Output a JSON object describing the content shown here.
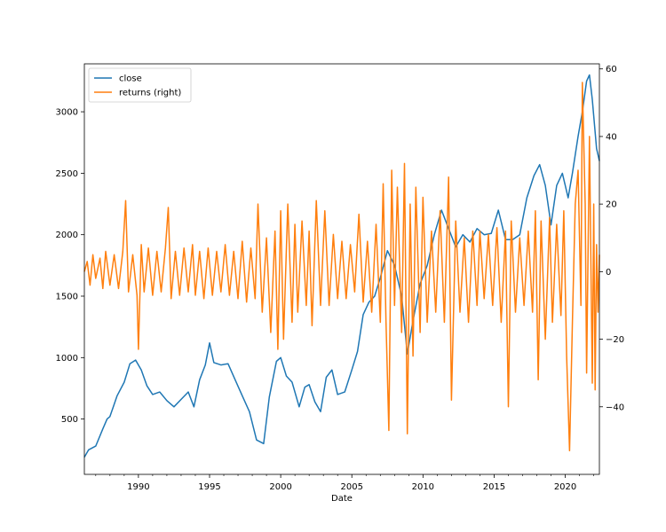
{
  "chart_data": {
    "type": "line",
    "xlabel": "Date",
    "x_range": [
      1986.2,
      2022.4
    ],
    "x_tick_labels": [
      "1990",
      "1995",
      "2000",
      "2005",
      "2010",
      "2015",
      "2020"
    ],
    "left_axis": {
      "ylim": [
        50,
        3390
      ],
      "tick_labels": [
        "500",
        "1000",
        "1500",
        "2000",
        "2500",
        "3000"
      ]
    },
    "right_axis": {
      "ylim": [
        -60,
        61.5
      ],
      "tick_labels": [
        "−40",
        "−20",
        "0",
        "20",
        "40",
        "60"
      ]
    },
    "legend": {
      "placement": "upper-left",
      "entries": [
        "close",
        "returns (right)"
      ]
    },
    "grid": false,
    "series": [
      {
        "name": "close",
        "axis": "left",
        "color": "#1f77b4",
        "points": [
          [
            1986.2,
            190
          ],
          [
            1986.5,
            250
          ],
          [
            1987.0,
            280
          ],
          [
            1987.5,
            420
          ],
          [
            1987.8,
            500
          ],
          [
            1988.0,
            520
          ],
          [
            1988.5,
            690
          ],
          [
            1989.0,
            800
          ],
          [
            1989.4,
            950
          ],
          [
            1989.8,
            980
          ],
          [
            1990.2,
            900
          ],
          [
            1990.6,
            770
          ],
          [
            1991.0,
            700
          ],
          [
            1991.5,
            720
          ],
          [
            1992.0,
            650
          ],
          [
            1992.5,
            600
          ],
          [
            1993.0,
            660
          ],
          [
            1993.5,
            720
          ],
          [
            1993.9,
            600
          ],
          [
            1994.3,
            820
          ],
          [
            1994.7,
            940
          ],
          [
            1995.0,
            1120
          ],
          [
            1995.3,
            960
          ],
          [
            1995.8,
            940
          ],
          [
            1996.3,
            950
          ],
          [
            1996.8,
            820
          ],
          [
            1997.3,
            690
          ],
          [
            1997.8,
            560
          ],
          [
            1998.3,
            330
          ],
          [
            1998.8,
            300
          ],
          [
            1999.2,
            680
          ],
          [
            1999.7,
            970
          ],
          [
            2000.0,
            1000
          ],
          [
            2000.4,
            850
          ],
          [
            2000.8,
            800
          ],
          [
            2001.3,
            600
          ],
          [
            2001.7,
            760
          ],
          [
            2002.0,
            780
          ],
          [
            2002.4,
            640
          ],
          [
            2002.8,
            560
          ],
          [
            2003.2,
            840
          ],
          [
            2003.6,
            900
          ],
          [
            2004.0,
            700
          ],
          [
            2004.5,
            720
          ],
          [
            2005.0,
            900
          ],
          [
            2005.4,
            1050
          ],
          [
            2005.8,
            1350
          ],
          [
            2006.2,
            1450
          ],
          [
            2006.6,
            1500
          ],
          [
            2007.0,
            1650
          ],
          [
            2007.5,
            1870
          ],
          [
            2008.0,
            1750
          ],
          [
            2008.5,
            1500
          ],
          [
            2008.9,
            1030
          ],
          [
            2009.3,
            1300
          ],
          [
            2009.8,
            1600
          ],
          [
            2010.3,
            1750
          ],
          [
            2010.8,
            2000
          ],
          [
            2011.3,
            2200
          ],
          [
            2011.8,
            2050
          ],
          [
            2012.3,
            1900
          ],
          [
            2012.8,
            2000
          ],
          [
            2013.3,
            1940
          ],
          [
            2013.8,
            2050
          ],
          [
            2014.3,
            2000
          ],
          [
            2014.8,
            2010
          ],
          [
            2015.3,
            2200
          ],
          [
            2015.8,
            1960
          ],
          [
            2016.3,
            1960
          ],
          [
            2016.8,
            2000
          ],
          [
            2017.3,
            2300
          ],
          [
            2017.8,
            2480
          ],
          [
            2018.2,
            2570
          ],
          [
            2018.6,
            2400
          ],
          [
            2019.0,
            2080
          ],
          [
            2019.4,
            2400
          ],
          [
            2019.8,
            2500
          ],
          [
            2020.2,
            2300
          ],
          [
            2020.5,
            2500
          ],
          [
            2020.9,
            2800
          ],
          [
            2021.2,
            3000
          ],
          [
            2021.5,
            3250
          ],
          [
            2021.7,
            3300
          ],
          [
            2021.9,
            3100
          ],
          [
            2022.2,
            2700
          ],
          [
            2022.4,
            2600
          ]
        ]
      },
      {
        "name": "returns (right)",
        "axis": "right",
        "color": "#ff7f0e",
        "points": [
          [
            1986.2,
            0
          ],
          [
            1986.4,
            3
          ],
          [
            1986.6,
            -4
          ],
          [
            1986.8,
            5
          ],
          [
            1987.0,
            -2
          ],
          [
            1987.3,
            4
          ],
          [
            1987.5,
            -5
          ],
          [
            1987.7,
            6
          ],
          [
            1988.0,
            -4
          ],
          [
            1988.3,
            5
          ],
          [
            1988.6,
            -5
          ],
          [
            1988.9,
            6
          ],
          [
            1989.1,
            21
          ],
          [
            1989.3,
            -6
          ],
          [
            1989.6,
            5
          ],
          [
            1989.9,
            -7
          ],
          [
            1990.0,
            -23
          ],
          [
            1990.2,
            8
          ],
          [
            1990.4,
            -6
          ],
          [
            1990.7,
            7
          ],
          [
            1991.0,
            -7
          ],
          [
            1991.3,
            6
          ],
          [
            1991.6,
            -6
          ],
          [
            1991.9,
            7
          ],
          [
            1992.1,
            19
          ],
          [
            1992.3,
            -8
          ],
          [
            1992.6,
            6
          ],
          [
            1992.9,
            -7
          ],
          [
            1993.2,
            7
          ],
          [
            1993.5,
            -6
          ],
          [
            1993.8,
            8
          ],
          [
            1994.0,
            -7
          ],
          [
            1994.3,
            6
          ],
          [
            1994.6,
            -8
          ],
          [
            1994.9,
            7
          ],
          [
            1995.2,
            -7
          ],
          [
            1995.5,
            6
          ],
          [
            1995.8,
            -6
          ],
          [
            1996.1,
            8
          ],
          [
            1996.4,
            -7
          ],
          [
            1996.7,
            6
          ],
          [
            1997.0,
            -8
          ],
          [
            1997.3,
            9
          ],
          [
            1997.6,
            -9
          ],
          [
            1997.9,
            7
          ],
          [
            1998.2,
            -8
          ],
          [
            1998.4,
            20
          ],
          [
            1998.7,
            -12
          ],
          [
            1999.0,
            10
          ],
          [
            1999.3,
            -18
          ],
          [
            1999.6,
            12
          ],
          [
            1999.8,
            -23
          ],
          [
            2000.0,
            18
          ],
          [
            2000.2,
            -20
          ],
          [
            2000.5,
            20
          ],
          [
            2000.8,
            -15
          ],
          [
            2001.0,
            14
          ],
          [
            2001.2,
            -12
          ],
          [
            2001.5,
            15
          ],
          [
            2001.8,
            -10
          ],
          [
            2002.0,
            12
          ],
          [
            2002.2,
            -16
          ],
          [
            2002.5,
            21
          ],
          [
            2002.8,
            -10
          ],
          [
            2003.1,
            18
          ],
          [
            2003.4,
            -10
          ],
          [
            2003.7,
            11
          ],
          [
            2004.0,
            -8
          ],
          [
            2004.3,
            9
          ],
          [
            2004.6,
            -8
          ],
          [
            2004.9,
            8
          ],
          [
            2005.2,
            -6
          ],
          [
            2005.5,
            17
          ],
          [
            2005.8,
            -9
          ],
          [
            2006.1,
            9
          ],
          [
            2006.4,
            -12
          ],
          [
            2006.7,
            14
          ],
          [
            2007.0,
            -15
          ],
          [
            2007.2,
            26
          ],
          [
            2007.4,
            -15
          ],
          [
            2007.6,
            -47
          ],
          [
            2007.8,
            30
          ],
          [
            2008.0,
            -10
          ],
          [
            2008.2,
            25
          ],
          [
            2008.5,
            -18
          ],
          [
            2008.7,
            32
          ],
          [
            2008.9,
            -48
          ],
          [
            2009.1,
            20
          ],
          [
            2009.3,
            -25
          ],
          [
            2009.5,
            25
          ],
          [
            2009.8,
            -18
          ],
          [
            2010.0,
            22
          ],
          [
            2010.3,
            -15
          ],
          [
            2010.6,
            12
          ],
          [
            2010.9,
            -12
          ],
          [
            2011.2,
            18
          ],
          [
            2011.5,
            -15
          ],
          [
            2011.8,
            28
          ],
          [
            2012.0,
            -38
          ],
          [
            2012.3,
            15
          ],
          [
            2012.6,
            -12
          ],
          [
            2012.9,
            10
          ],
          [
            2013.2,
            -15
          ],
          [
            2013.5,
            12
          ],
          [
            2013.8,
            -10
          ],
          [
            2014.0,
            12
          ],
          [
            2014.3,
            -8
          ],
          [
            2014.6,
            11
          ],
          [
            2014.9,
            -10
          ],
          [
            2015.2,
            13
          ],
          [
            2015.5,
            -15
          ],
          [
            2015.8,
            12
          ],
          [
            2016.0,
            -40
          ],
          [
            2016.2,
            15
          ],
          [
            2016.5,
            -12
          ],
          [
            2016.8,
            10
          ],
          [
            2017.1,
            -10
          ],
          [
            2017.4,
            12
          ],
          [
            2017.7,
            -12
          ],
          [
            2017.9,
            18
          ],
          [
            2018.1,
            -32
          ],
          [
            2018.3,
            15
          ],
          [
            2018.6,
            -20
          ],
          [
            2018.9,
            16
          ],
          [
            2019.1,
            -15
          ],
          [
            2019.4,
            14
          ],
          [
            2019.7,
            -13
          ],
          [
            2019.9,
            18
          ],
          [
            2020.1,
            -25
          ],
          [
            2020.3,
            -53
          ],
          [
            2020.5,
            -15
          ],
          [
            2020.7,
            20
          ],
          [
            2020.9,
            30
          ],
          [
            2021.1,
            -10
          ],
          [
            2021.2,
            56
          ],
          [
            2021.4,
            20
          ],
          [
            2021.5,
            -30
          ],
          [
            2021.7,
            40
          ],
          [
            2021.9,
            -33
          ],
          [
            2022.0,
            20
          ],
          [
            2022.1,
            -35
          ],
          [
            2022.2,
            8
          ],
          [
            2022.3,
            -12
          ],
          [
            2022.4,
            5
          ]
        ]
      }
    ]
  }
}
